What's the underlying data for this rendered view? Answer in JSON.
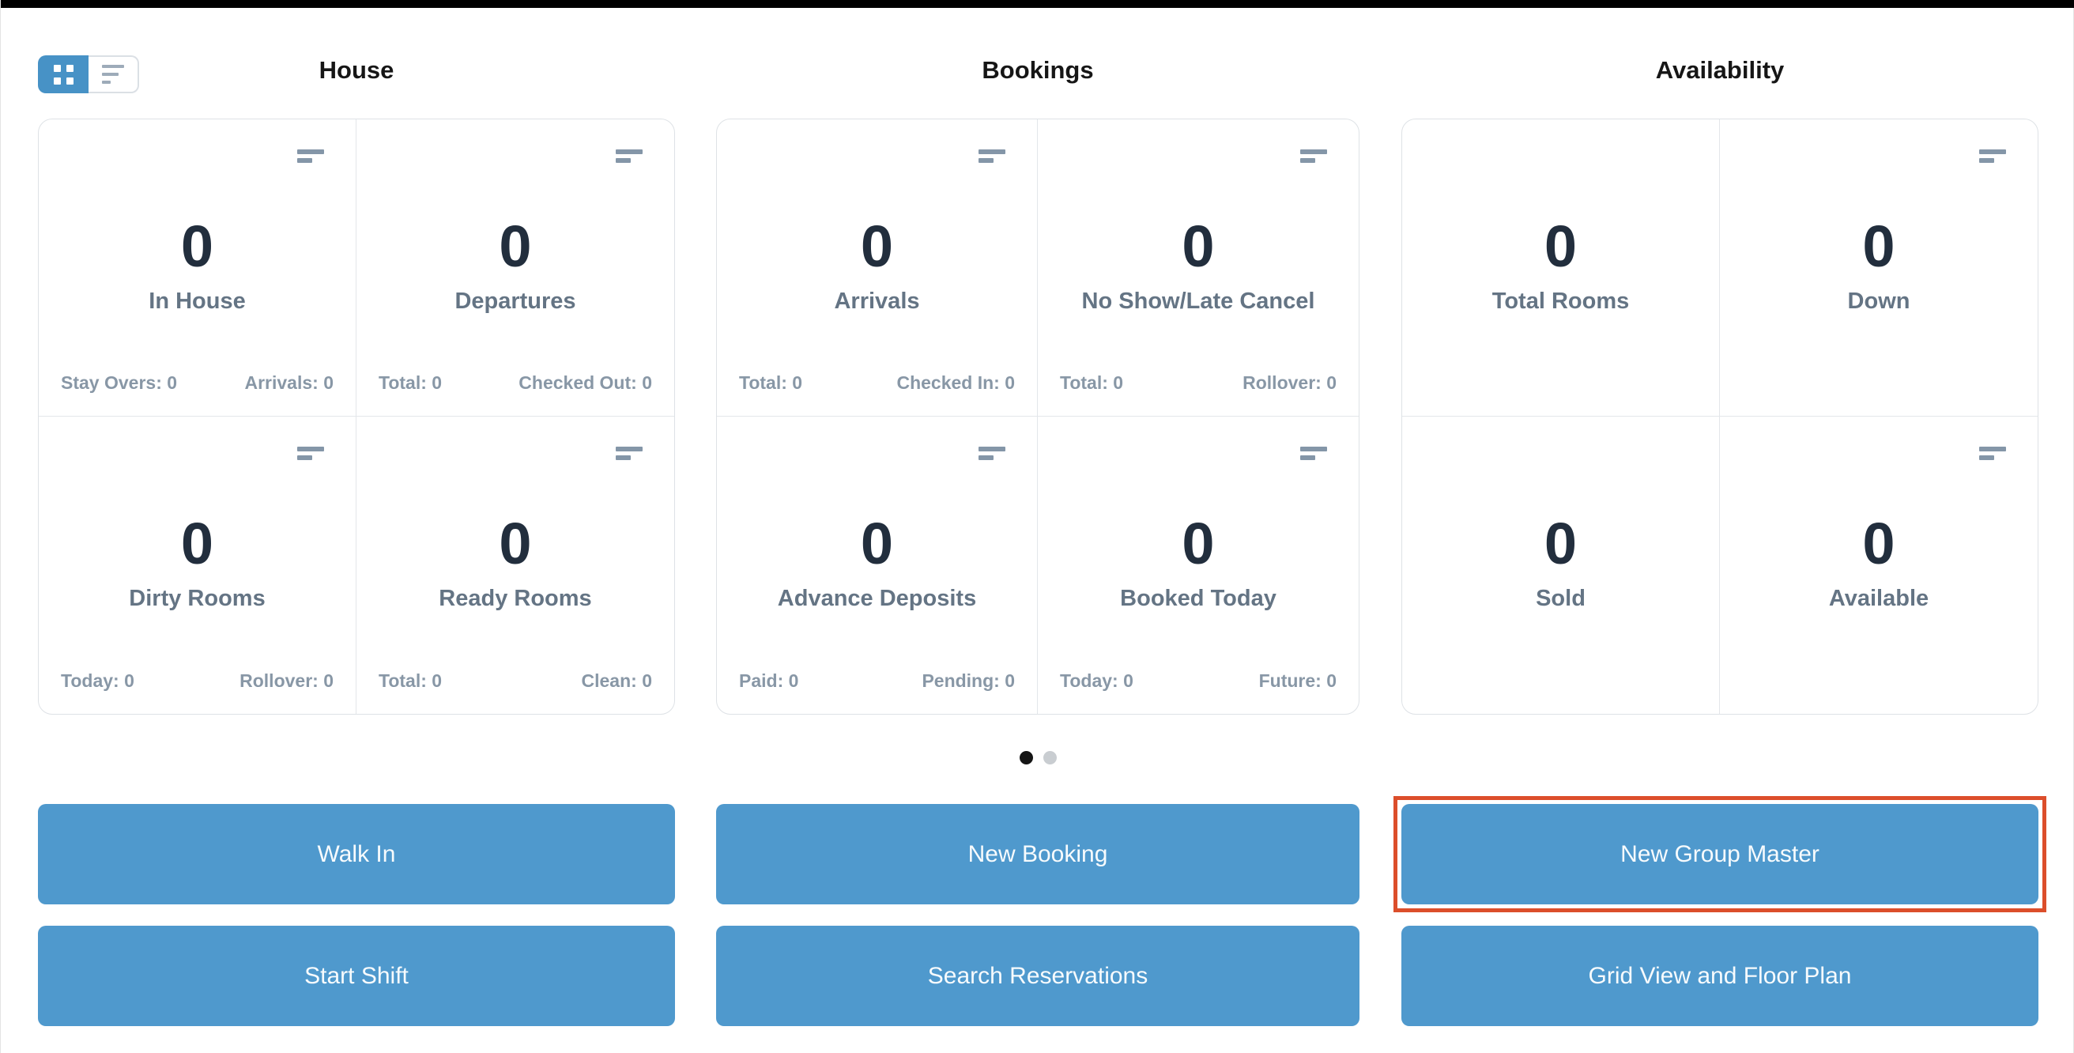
{
  "view_toggle": {
    "grid_icon": "grid-view-icon",
    "list_icon": "list-view-icon",
    "active": "grid"
  },
  "sections": [
    {
      "title": "House",
      "cards": [
        {
          "value": "0",
          "label": "In House",
          "stat_left": "Stay Overs: 0",
          "stat_right": "Arrivals: 0"
        },
        {
          "value": "0",
          "label": "Departures",
          "stat_left": "Total: 0",
          "stat_right": "Checked Out: 0"
        },
        {
          "value": "0",
          "label": "Dirty Rooms",
          "stat_left": "Today: 0",
          "stat_right": "Rollover: 0"
        },
        {
          "value": "0",
          "label": "Ready Rooms",
          "stat_left": "Total: 0",
          "stat_right": "Clean: 0"
        }
      ],
      "buttons": [
        "Walk In",
        "Start Shift"
      ]
    },
    {
      "title": "Bookings",
      "cards": [
        {
          "value": "0",
          "label": "Arrivals",
          "stat_left": "Total: 0",
          "stat_right": "Checked In: 0"
        },
        {
          "value": "0",
          "label": "No Show/Late Cancel",
          "stat_left": "Total: 0",
          "stat_right": "Rollover: 0"
        },
        {
          "value": "0",
          "label": "Advance Deposits",
          "stat_left": "Paid: 0",
          "stat_right": "Pending: 0"
        },
        {
          "value": "0",
          "label": "Booked Today",
          "stat_left": "Today: 0",
          "stat_right": "Future: 0"
        }
      ],
      "buttons": [
        "New Booking",
        "Search Reservations"
      ]
    },
    {
      "title": "Availability",
      "cards": [
        {
          "value": "0",
          "label": "Total Rooms"
        },
        {
          "value": "0",
          "label": "Down"
        },
        {
          "value": "0",
          "label": "Sold"
        },
        {
          "value": "0",
          "label": "Available"
        }
      ],
      "buttons": [
        "New Group Master",
        "Grid View and Floor Plan"
      ]
    }
  ],
  "carousel": {
    "dot_count": 2,
    "active_index": 0
  },
  "highlight": {
    "target": "New Group Master",
    "color": "#dc4e2b"
  },
  "icons": {
    "card_corner": "card-menu-icon"
  },
  "colors": {
    "accent_blue": "#4f99cd",
    "toggle_blue": "#4792c6",
    "highlight_red": "#dc4e2b",
    "value_text": "#222e3d",
    "label_text": "#647484",
    "stat_text": "#8897a6",
    "panel_border": "#dee2e6",
    "icon_gray": "#8496a8",
    "dot_active": "#151515",
    "dot_inactive": "#c9cdd1"
  }
}
